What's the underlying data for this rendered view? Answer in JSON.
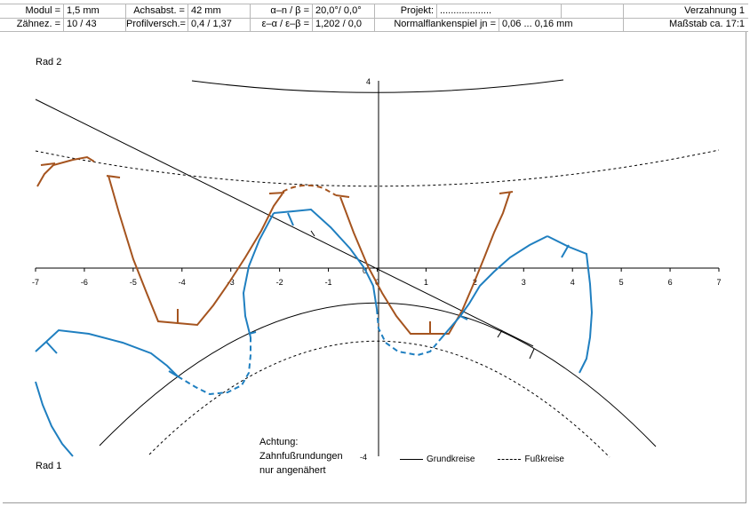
{
  "header": {
    "row1": {
      "modul_label": "Modul =",
      "modul_value": "1,5 mm",
      "achsabst_label": "Achsabst. =",
      "achsabst_value": "42 mm",
      "alpha_label": "α–n / β =",
      "alpha_value": "20,0°/ 0,0°",
      "projekt_label": "Projekt:",
      "projekt_value": "...................",
      "title": "Verzahnung 1"
    },
    "row2": {
      "zaehne_label": "Zähnez. =",
      "zaehne_value": "10 / 43",
      "profil_label": "Profilversch.=",
      "profil_value": "0,4 / 1,37",
      "eps_label": "ε–α / ε–β =",
      "eps_value": "1,202 / 0,0",
      "spiel_label": "Normalflankenspiel jn =",
      "spiel_value": "0,06 ... 0,16 mm",
      "massstab": "Maßstab ca. 17:1"
    }
  },
  "plot": {
    "rad2_label": "Rad 2",
    "rad1_label": "Rad 1",
    "note_lines": [
      "Achtung:",
      "Zahnfußrundungen",
      "nur angenähert"
    ],
    "legend": {
      "grundkreise": "Grundkreise",
      "fusskreise": "Fußkreise"
    },
    "colors": {
      "rad2": "#a5541f",
      "rad1": "#1f7fc0",
      "axes": "#000000"
    },
    "x_ticks": [
      "-7",
      "-6",
      "-5",
      "-4",
      "-3",
      "-2",
      "-1",
      "0",
      "1",
      "2",
      "3",
      "4",
      "5",
      "6",
      "7"
    ],
    "y_tick_top": "4",
    "y_tick_bottom": "-4",
    "origin_label": "0"
  }
}
